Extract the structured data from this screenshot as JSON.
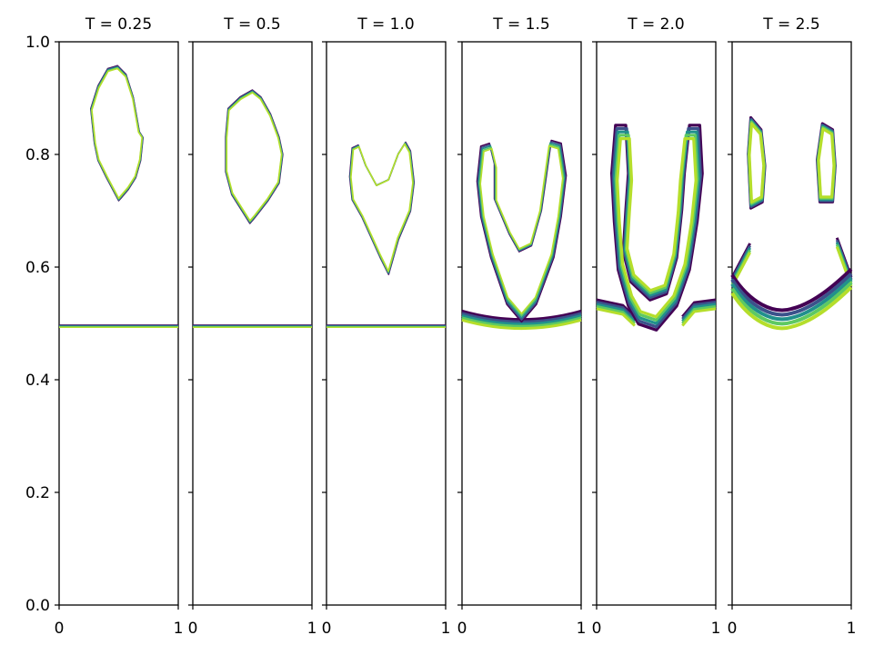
{
  "chart_data": {
    "type": "contour",
    "shared_ylim": [
      0,
      1
    ],
    "shared_xlim": [
      0,
      1
    ],
    "yticks": [
      "0.0",
      "0.2",
      "0.4",
      "0.6",
      "0.8",
      "1.0"
    ],
    "xticks": [
      "0",
      "1"
    ],
    "grid": false,
    "legend": "none",
    "colors": [
      "#440154",
      "#3b528b",
      "#21908c",
      "#5ec962",
      "#b5de2b"
    ],
    "panels": [
      {
        "title": "T = 0.25",
        "interface_y": 0.495,
        "bubbles": [
          {
            "band": 0.0,
            "outline": [
              [
                0.41,
                0.95
              ],
              [
                0.49,
                0.955
              ],
              [
                0.56,
                0.94
              ],
              [
                0.62,
                0.9
              ],
              [
                0.67,
                0.84
              ],
              [
                0.7,
                0.83
              ],
              [
                0.68,
                0.79
              ],
              [
                0.64,
                0.76
              ],
              [
                0.58,
                0.74
              ],
              [
                0.52,
                0.725
              ],
              [
                0.5,
                0.72
              ],
              [
                0.45,
                0.74
              ],
              [
                0.4,
                0.76
              ],
              [
                0.33,
                0.79
              ],
              [
                0.3,
                0.82
              ],
              [
                0.27,
                0.88
              ],
              [
                0.33,
                0.92
              ]
            ]
          }
        ]
      },
      {
        "title": "T = 0.5",
        "interface_y": 0.495,
        "bubbles": [
          {
            "band": 0.0,
            "outline": [
              [
                0.5,
                0.912
              ],
              [
                0.57,
                0.9
              ],
              [
                0.65,
                0.87
              ],
              [
                0.72,
                0.83
              ],
              [
                0.75,
                0.8
              ],
              [
                0.72,
                0.75
              ],
              [
                0.63,
                0.72
              ],
              [
                0.52,
                0.69
              ],
              [
                0.48,
                0.68
              ],
              [
                0.42,
                0.7
              ],
              [
                0.33,
                0.73
              ],
              [
                0.28,
                0.77
              ],
              [
                0.28,
                0.83
              ],
              [
                0.3,
                0.88
              ],
              [
                0.4,
                0.9
              ]
            ]
          }
        ]
      },
      {
        "title": "T = 1.0",
        "interface_y": 0.495,
        "bubbles": [
          {
            "band": 0.0,
            "outline": [
              [
                0.2,
                0.76
              ],
              [
                0.22,
                0.81
              ],
              [
                0.27,
                0.815
              ],
              [
                0.33,
                0.78
              ],
              [
                0.42,
                0.745
              ],
              [
                0.52,
                0.755
              ],
              [
                0.6,
                0.8
              ],
              [
                0.66,
                0.82
              ],
              [
                0.7,
                0.805
              ],
              [
                0.73,
                0.75
              ],
              [
                0.7,
                0.7
              ],
              [
                0.6,
                0.65
              ],
              [
                0.52,
                0.59
              ],
              [
                0.45,
                0.62
              ],
              [
                0.3,
                0.69
              ],
              [
                0.22,
                0.72
              ]
            ]
          }
        ]
      },
      {
        "title": "T = 1.5",
        "interface_y": 0.49,
        "bubbles": [
          {
            "band": 0.0,
            "outline": [
              [
                0.14,
                0.75
              ],
              [
                0.17,
                0.81
              ],
              [
                0.24,
                0.815
              ],
              [
                0.28,
                0.78
              ],
              [
                0.28,
                0.72
              ],
              [
                0.4,
                0.66
              ],
              [
                0.48,
                0.63
              ],
              [
                0.58,
                0.64
              ],
              [
                0.66,
                0.7
              ],
              [
                0.7,
                0.76
              ],
              [
                0.74,
                0.82
              ],
              [
                0.82,
                0.815
              ],
              [
                0.86,
                0.76
              ],
              [
                0.82,
                0.69
              ],
              [
                0.76,
                0.62
              ],
              [
                0.62,
                0.54
              ],
              [
                0.5,
                0.51
              ],
              [
                0.38,
                0.54
              ],
              [
                0.25,
                0.62
              ],
              [
                0.17,
                0.69
              ]
            ]
          }
        ]
      },
      {
        "title": "T = 2.0",
        "interface_y": 0.53,
        "bubbles": [
          {
            "band": 0.0,
            "outline": [
              [
                0.15,
                0.76
              ],
              [
                0.18,
                0.84
              ],
              [
                0.26,
                0.84
              ],
              [
                0.28,
                0.76
              ],
              [
                0.26,
                0.7
              ],
              [
                0.24,
                0.63
              ],
              [
                0.3,
                0.58
              ],
              [
                0.45,
                0.55
              ],
              [
                0.58,
                0.56
              ],
              [
                0.66,
                0.62
              ],
              [
                0.7,
                0.7
              ],
              [
                0.72,
                0.76
              ],
              [
                0.76,
                0.84
              ],
              [
                0.84,
                0.84
              ],
              [
                0.86,
                0.76
              ],
              [
                0.82,
                0.68
              ],
              [
                0.76,
                0.6
              ],
              [
                0.66,
                0.54
              ],
              [
                0.5,
                0.5
              ],
              [
                0.36,
                0.51
              ],
              [
                0.28,
                0.54
              ],
              [
                0.2,
                0.6
              ],
              [
                0.17,
                0.68
              ]
            ]
          }
        ]
      },
      {
        "title": "T = 2.5",
        "interface_y": 0.59,
        "bubbles": [
          {
            "band": 0.0,
            "outline": [
              [
                0.14,
                0.8
              ],
              [
                0.16,
                0.86
              ],
              [
                0.24,
                0.84
              ],
              [
                0.27,
                0.78
              ],
              [
                0.25,
                0.72
              ],
              [
                0.16,
                0.71
              ]
            ]
          },
          {
            "band": 0.0,
            "outline": [
              [
                0.72,
                0.79
              ],
              [
                0.76,
                0.85
              ],
              [
                0.84,
                0.84
              ],
              [
                0.86,
                0.78
              ],
              [
                0.84,
                0.72
              ],
              [
                0.74,
                0.72
              ]
            ]
          }
        ]
      }
    ]
  }
}
